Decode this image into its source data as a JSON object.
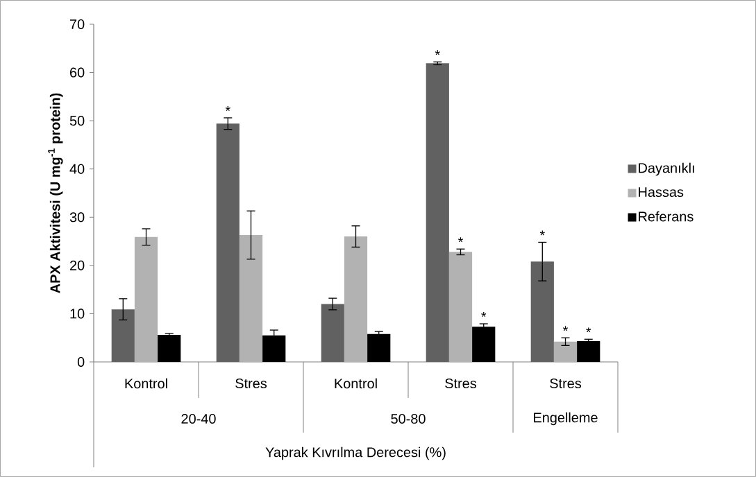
{
  "chart_data": {
    "type": "bar",
    "ylabel": "APX Aktivitesi (U mg$^{-1}$ protein)",
    "xlabel": "Yaprak Kıvrılma Derecesi (%)",
    "categories": [
      "Kontrol",
      "Stres",
      "Kontrol",
      "Stres",
      "Stres"
    ],
    "annotations": [
      "20-40",
      "50-80",
      "Engelleme"
    ],
    "series": [
      {
        "name": "Dayanıklı",
        "color": "#616161",
        "values": [
          10.9,
          49.4,
          12.0,
          61.9,
          20.8
        ],
        "errors": [
          2.2,
          1.2,
          1.2,
          0.3,
          4.0
        ],
        "value_labels": [
          null,
          "*",
          null,
          "*",
          "*"
        ]
      },
      {
        "name": "Hassas",
        "color": "#b2b2b2",
        "values": [
          25.9,
          26.3,
          26.0,
          22.8,
          4.2
        ],
        "errors": [
          1.7,
          5.0,
          2.2,
          0.6,
          0.8
        ],
        "value_labels": [
          null,
          null,
          null,
          "*",
          "*"
        ]
      },
      {
        "name": "Referans",
        "color": "#000000",
        "values": [
          5.6,
          5.5,
          5.8,
          7.3,
          4.3
        ],
        "errors": [
          0.3,
          1.1,
          0.5,
          0.6,
          0.4
        ],
        "value_labels": [
          null,
          null,
          null,
          "*",
          "*"
        ]
      }
    ],
    "ylim": [
      0,
      70
    ],
    "yticks": [
      0,
      10,
      20,
      30,
      40,
      50,
      60,
      70
    ],
    "grid": false,
    "legend": "right"
  }
}
